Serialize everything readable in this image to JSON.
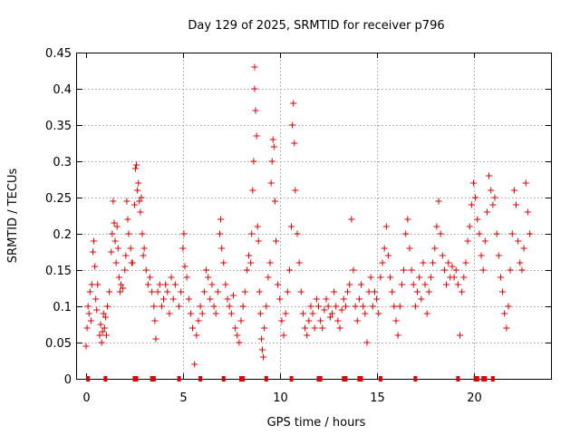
{
  "chart_data": {
    "type": "scatter",
    "title": "Day 129 of 2025, SRMTID for receiver p796",
    "xlabel": "GPS time / hours",
    "ylabel": "SRMTID / TECUs",
    "xlim": [
      0,
      24
    ],
    "ylim": [
      0,
      0.45
    ],
    "x_ticks": [
      0,
      5,
      10,
      15,
      20
    ],
    "x_tick_labels": [
      "0",
      "5",
      "10",
      "15",
      "20"
    ],
    "y_ticks": [
      0,
      0.05,
      0.1,
      0.15,
      0.2,
      0.25,
      0.3,
      0.35,
      0.4,
      0.45
    ],
    "y_tick_labels": [
      "0",
      "0.05",
      "0.1",
      "0.15",
      "0.2",
      "0.25",
      "0.3",
      "0.35",
      "0.4",
      "0.45"
    ],
    "grid": true,
    "marker": "plus",
    "color": "#e00000",
    "series": [
      {
        "name": "SRMTID",
        "points": [
          [
            0.0,
            0.045
          ],
          [
            0.05,
            0.07
          ],
          [
            0.1,
            0.1
          ],
          [
            0.15,
            0.09
          ],
          [
            0.2,
            0.12
          ],
          [
            0.25,
            0.08
          ],
          [
            0.3,
            0.13
          ],
          [
            0.35,
            0.175
          ],
          [
            0.4,
            0.19
          ],
          [
            0.45,
            0.155
          ],
          [
            0.5,
            0.11
          ],
          [
            0.55,
            0.095
          ],
          [
            0.6,
            0.13
          ],
          [
            0.7,
            0.06
          ],
          [
            0.75,
            0.075
          ],
          [
            0.8,
            0.05
          ],
          [
            0.85,
            0.065
          ],
          [
            0.9,
            0.09
          ],
          [
            0.95,
            0.07
          ],
          [
            1.0,
            0.085
          ],
          [
            1.05,
            0.06
          ],
          [
            1.1,
            0.1
          ],
          [
            1.2,
            0.12
          ],
          [
            1.3,
            0.175
          ],
          [
            1.35,
            0.2
          ],
          [
            1.4,
            0.245
          ],
          [
            1.45,
            0.215
          ],
          [
            1.5,
            0.19
          ],
          [
            1.55,
            0.16
          ],
          [
            1.6,
            0.21
          ],
          [
            1.65,
            0.18
          ],
          [
            1.7,
            0.14
          ],
          [
            1.75,
            0.12
          ],
          [
            1.8,
            0.13
          ],
          [
            1.9,
            0.125
          ],
          [
            2.0,
            0.15
          ],
          [
            2.05,
            0.17
          ],
          [
            2.1,
            0.245
          ],
          [
            2.15,
            0.22
          ],
          [
            2.2,
            0.2
          ],
          [
            2.3,
            0.18
          ],
          [
            2.35,
            0.16
          ],
          [
            2.4,
            0.16
          ],
          [
            2.5,
            0.24
          ],
          [
            2.55,
            0.29
          ],
          [
            2.6,
            0.295
          ],
          [
            2.65,
            0.26
          ],
          [
            2.7,
            0.27
          ],
          [
            2.75,
            0.245
          ],
          [
            2.8,
            0.23
          ],
          [
            2.85,
            0.25
          ],
          [
            2.9,
            0.2
          ],
          [
            2.95,
            0.17
          ],
          [
            3.0,
            0.18
          ],
          [
            3.1,
            0.15
          ],
          [
            3.2,
            0.13
          ],
          [
            3.3,
            0.14
          ],
          [
            3.4,
            0.12
          ],
          [
            3.5,
            0.1
          ],
          [
            3.55,
            0.08
          ],
          [
            3.6,
            0.055
          ],
          [
            3.7,
            0.12
          ],
          [
            3.8,
            0.13
          ],
          [
            3.9,
            0.1
          ],
          [
            4.0,
            0.11
          ],
          [
            4.1,
            0.13
          ],
          [
            4.2,
            0.12
          ],
          [
            4.3,
            0.09
          ],
          [
            4.4,
            0.14
          ],
          [
            4.5,
            0.11
          ],
          [
            4.6,
            0.13
          ],
          [
            4.8,
            0.1
          ],
          [
            4.9,
            0.12
          ],
          [
            5.0,
            0.18
          ],
          [
            5.05,
            0.2
          ],
          [
            5.1,
            0.155
          ],
          [
            5.2,
            0.14
          ],
          [
            5.3,
            0.11
          ],
          [
            5.4,
            0.09
          ],
          [
            5.5,
            0.07
          ],
          [
            5.6,
            0.02
          ],
          [
            5.7,
            0.06
          ],
          [
            5.8,
            0.08
          ],
          [
            5.9,
            0.1
          ],
          [
            6.0,
            0.09
          ],
          [
            6.1,
            0.12
          ],
          [
            6.2,
            0.15
          ],
          [
            6.3,
            0.14
          ],
          [
            6.4,
            0.11
          ],
          [
            6.5,
            0.13
          ],
          [
            6.6,
            0.1
          ],
          [
            6.7,
            0.09
          ],
          [
            6.8,
            0.12
          ],
          [
            6.9,
            0.2
          ],
          [
            6.95,
            0.22
          ],
          [
            7.0,
            0.18
          ],
          [
            7.1,
            0.16
          ],
          [
            7.2,
            0.13
          ],
          [
            7.3,
            0.11
          ],
          [
            7.4,
            0.1
          ],
          [
            7.5,
            0.09
          ],
          [
            7.6,
            0.115
          ],
          [
            7.7,
            0.07
          ],
          [
            7.8,
            0.06
          ],
          [
            7.9,
            0.05
          ],
          [
            8.0,
            0.08
          ],
          [
            8.1,
            0.1
          ],
          [
            8.2,
            0.12
          ],
          [
            8.3,
            0.15
          ],
          [
            8.4,
            0.17
          ],
          [
            8.5,
            0.16
          ],
          [
            8.55,
            0.2
          ],
          [
            8.6,
            0.26
          ],
          [
            8.65,
            0.3
          ],
          [
            8.7,
            0.4
          ],
          [
            8.7,
            0.43
          ],
          [
            8.75,
            0.37
          ],
          [
            8.8,
            0.335
          ],
          [
            8.85,
            0.21
          ],
          [
            8.9,
            0.19
          ],
          [
            8.95,
            0.12
          ],
          [
            9.0,
            0.09
          ],
          [
            9.05,
            0.055
          ],
          [
            9.1,
            0.04
          ],
          [
            9.15,
            0.03
          ],
          [
            9.2,
            0.07
          ],
          [
            9.3,
            0.1
          ],
          [
            9.4,
            0.14
          ],
          [
            9.5,
            0.16
          ],
          [
            9.55,
            0.27
          ],
          [
            9.6,
            0.3
          ],
          [
            9.65,
            0.33
          ],
          [
            9.7,
            0.32
          ],
          [
            9.75,
            0.245
          ],
          [
            9.8,
            0.19
          ],
          [
            9.9,
            0.13
          ],
          [
            10.0,
            0.11
          ],
          [
            10.1,
            0.08
          ],
          [
            10.2,
            0.06
          ],
          [
            10.3,
            0.09
          ],
          [
            10.4,
            0.12
          ],
          [
            10.5,
            0.15
          ],
          [
            10.6,
            0.21
          ],
          [
            10.65,
            0.35
          ],
          [
            10.7,
            0.38
          ],
          [
            10.75,
            0.325
          ],
          [
            10.8,
            0.26
          ],
          [
            10.9,
            0.2
          ],
          [
            11.0,
            0.16
          ],
          [
            11.1,
            0.12
          ],
          [
            11.2,
            0.09
          ],
          [
            11.3,
            0.07
          ],
          [
            11.4,
            0.06
          ],
          [
            11.5,
            0.08
          ],
          [
            11.6,
            0.1
          ],
          [
            11.7,
            0.09
          ],
          [
            11.8,
            0.07
          ],
          [
            11.9,
            0.11
          ],
          [
            12.0,
            0.1
          ],
          [
            12.1,
            0.08
          ],
          [
            12.2,
            0.07
          ],
          [
            12.3,
            0.095
          ],
          [
            12.4,
            0.11
          ],
          [
            12.5,
            0.1
          ],
          [
            12.6,
            0.085
          ],
          [
            12.7,
            0.09
          ],
          [
            12.8,
            0.12
          ],
          [
            12.9,
            0.1
          ],
          [
            13.0,
            0.08
          ],
          [
            13.1,
            0.07
          ],
          [
            13.2,
            0.095
          ],
          [
            13.3,
            0.11
          ],
          [
            13.4,
            0.1
          ],
          [
            13.5,
            0.12
          ],
          [
            13.6,
            0.13
          ],
          [
            13.7,
            0.22
          ],
          [
            13.8,
            0.15
          ],
          [
            13.9,
            0.1
          ],
          [
            14.0,
            0.08
          ],
          [
            14.1,
            0.11
          ],
          [
            14.2,
            0.13
          ],
          [
            14.3,
            0.1
          ],
          [
            14.4,
            0.09
          ],
          [
            14.5,
            0.05
          ],
          [
            14.6,
            0.12
          ],
          [
            14.7,
            0.14
          ],
          [
            14.8,
            0.1
          ],
          [
            14.9,
            0.12
          ],
          [
            15.0,
            0.11
          ],
          [
            15.1,
            0.09
          ],
          [
            15.2,
            0.14
          ],
          [
            15.3,
            0.16
          ],
          [
            15.4,
            0.18
          ],
          [
            15.5,
            0.21
          ],
          [
            15.6,
            0.17
          ],
          [
            15.7,
            0.14
          ],
          [
            15.8,
            0.12
          ],
          [
            15.9,
            0.1
          ],
          [
            16.0,
            0.08
          ],
          [
            16.1,
            0.06
          ],
          [
            16.2,
            0.1
          ],
          [
            16.3,
            0.13
          ],
          [
            16.4,
            0.15
          ],
          [
            16.5,
            0.2
          ],
          [
            16.6,
            0.22
          ],
          [
            16.7,
            0.18
          ],
          [
            16.8,
            0.15
          ],
          [
            16.9,
            0.13
          ],
          [
            17.0,
            0.1
          ],
          [
            17.1,
            0.12
          ],
          [
            17.2,
            0.14
          ],
          [
            17.3,
            0.11
          ],
          [
            17.4,
            0.16
          ],
          [
            17.5,
            0.13
          ],
          [
            17.6,
            0.09
          ],
          [
            17.7,
            0.12
          ],
          [
            17.8,
            0.14
          ],
          [
            17.9,
            0.16
          ],
          [
            18.0,
            0.18
          ],
          [
            18.1,
            0.21
          ],
          [
            18.2,
            0.245
          ],
          [
            18.3,
            0.2
          ],
          [
            18.4,
            0.17
          ],
          [
            18.5,
            0.15
          ],
          [
            18.6,
            0.13
          ],
          [
            18.7,
            0.16
          ],
          [
            18.8,
            0.14
          ],
          [
            18.9,
            0.155
          ],
          [
            19.0,
            0.14
          ],
          [
            19.1,
            0.15
          ],
          [
            19.2,
            0.13
          ],
          [
            19.3,
            0.06
          ],
          [
            19.4,
            0.12
          ],
          [
            19.5,
            0.14
          ],
          [
            19.6,
            0.16
          ],
          [
            19.7,
            0.19
          ],
          [
            19.8,
            0.21
          ],
          [
            19.9,
            0.24
          ],
          [
            20.0,
            0.27
          ],
          [
            20.1,
            0.25
          ],
          [
            20.2,
            0.22
          ],
          [
            20.3,
            0.2
          ],
          [
            20.4,
            0.17
          ],
          [
            20.5,
            0.15
          ],
          [
            20.6,
            0.19
          ],
          [
            20.7,
            0.23
          ],
          [
            20.8,
            0.28
          ],
          [
            20.9,
            0.26
          ],
          [
            21.0,
            0.24
          ],
          [
            21.1,
            0.25
          ],
          [
            21.2,
            0.2
          ],
          [
            21.3,
            0.17
          ],
          [
            21.4,
            0.14
          ],
          [
            21.5,
            0.12
          ],
          [
            21.6,
            0.09
          ],
          [
            21.7,
            0.07
          ],
          [
            21.8,
            0.1
          ],
          [
            21.9,
            0.15
          ],
          [
            22.0,
            0.2
          ],
          [
            22.1,
            0.26
          ],
          [
            22.2,
            0.24
          ],
          [
            22.3,
            0.19
          ],
          [
            22.4,
            0.16
          ],
          [
            22.5,
            0.15
          ],
          [
            22.6,
            0.18
          ],
          [
            22.7,
            0.27
          ],
          [
            22.8,
            0.23
          ],
          [
            22.9,
            0.2
          ]
        ]
      }
    ],
    "zero_markers": [
      0.1,
      1.0,
      2.5,
      2.6,
      3.4,
      3.5,
      4.8,
      5.9,
      7.1,
      8.0,
      8.1,
      9.3,
      10.6,
      12.0,
      12.1,
      13.3,
      13.4,
      14.1,
      14.2,
      15.2,
      17.0,
      19.2,
      20.1,
      20.2,
      20.5,
      20.6,
      21.0
    ]
  }
}
